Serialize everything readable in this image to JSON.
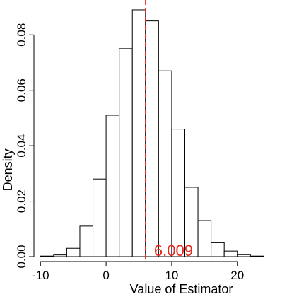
{
  "chart_data": {
    "type": "bar",
    "title": "",
    "xlabel": "Value of Estimator",
    "ylabel": "Density",
    "xlim": [
      -11,
      28
    ],
    "ylim": [
      0,
      0.0895
    ],
    "x_ticks": [
      -10,
      0,
      10,
      20
    ],
    "y_ticks": [
      0.0,
      0.02,
      0.04,
      0.06,
      0.08
    ],
    "y_tick_labels": [
      "0.00",
      "0.02",
      "0.04",
      "0.06",
      "0.08"
    ],
    "bins": [
      {
        "x0": -10,
        "x1": -8,
        "density": 0.0002
      },
      {
        "x0": -8,
        "x1": -6,
        "density": 0.0006
      },
      {
        "x0": -6,
        "x1": -4,
        "density": 0.003
      },
      {
        "x0": -4,
        "x1": -2,
        "density": 0.011
      },
      {
        "x0": -2,
        "x1": 0,
        "density": 0.028
      },
      {
        "x0": 0,
        "x1": 2,
        "density": 0.051
      },
      {
        "x0": 2,
        "x1": 4,
        "density": 0.075
      },
      {
        "x0": 4,
        "x1": 6,
        "density": 0.089
      },
      {
        "x0": 6,
        "x1": 8,
        "density": 0.085
      },
      {
        "x0": 8,
        "x1": 10,
        "density": 0.067
      },
      {
        "x0": 10,
        "x1": 12,
        "density": 0.046
      },
      {
        "x0": 12,
        "x1": 14,
        "density": 0.025
      },
      {
        "x0": 14,
        "x1": 16,
        "density": 0.013
      },
      {
        "x0": 16,
        "x1": 18,
        "density": 0.005
      },
      {
        "x0": 18,
        "x1": 20,
        "density": 0.002
      },
      {
        "x0": 20,
        "x1": 22,
        "density": 0.0007
      },
      {
        "x0": 22,
        "x1": 24,
        "density": 0.0002
      }
    ],
    "reference_line": {
      "x": 6.009,
      "label": "6.009",
      "color": "#e8281e",
      "style": "dashed"
    },
    "grid": false,
    "legend": "none"
  }
}
